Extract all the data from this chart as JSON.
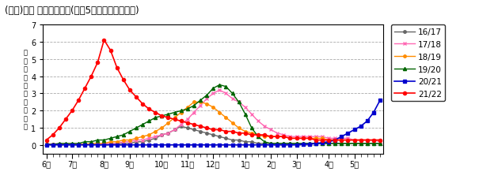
{
  "title": "(参考)全国 週別発生動向(過去5シーズンとの比較)",
  "ylabel": "定\n点\n当\nた\nり\n患\n者\n報\n告\n数",
  "ylim": [
    -0.5,
    7
  ],
  "yticks": [
    0,
    1,
    2,
    3,
    4,
    5,
    6,
    7
  ],
  "month_labels": [
    "6月",
    "7月",
    "8月",
    "9月",
    "10月",
    "11月",
    "12月",
    "1月",
    "2月",
    "3月",
    "4月",
    "5月"
  ],
  "n_weeks": 53,
  "month_tick_positions": [
    0,
    4,
    9,
    13,
    18,
    22,
    26,
    31,
    35,
    39,
    44,
    48
  ],
  "background_color": "#ffffff",
  "grid_color": "#aaaaaa",
  "series_order": [
    "16/17",
    "17/18",
    "18/19",
    "19/20",
    "20/21",
    "21/22"
  ],
  "series": {
    "16/17": {
      "color": "#666666",
      "marker": "o",
      "linewidth": 1.0,
      "markersize": 2.5,
      "data": [
        0.05,
        0.05,
        0.05,
        0.05,
        0.05,
        0.05,
        0.05,
        0.05,
        0.05,
        0.05,
        0.05,
        0.1,
        0.1,
        0.1,
        0.2,
        0.2,
        0.3,
        0.4,
        0.6,
        0.7,
        0.9,
        1.1,
        1.0,
        0.9,
        0.8,
        0.7,
        0.6,
        0.5,
        0.4,
        0.3,
        0.3,
        0.2,
        0.2,
        0.1,
        0.1,
        0.1,
        0.1,
        0.1,
        0.1,
        0.1,
        0.1,
        0.1,
        0.1,
        0.1,
        0.1,
        0.1,
        0.1,
        0.1,
        0.1,
        0.1,
        0.1,
        0.1,
        0.1
      ]
    },
    "17/18": {
      "color": "#ff69b4",
      "marker": "x",
      "linewidth": 1.0,
      "markersize": 3.5,
      "data": [
        0.05,
        0.05,
        0.05,
        0.05,
        0.05,
        0.05,
        0.05,
        0.05,
        0.05,
        0.1,
        0.1,
        0.1,
        0.2,
        0.2,
        0.3,
        0.3,
        0.4,
        0.5,
        0.6,
        0.7,
        0.9,
        1.2,
        1.5,
        1.9,
        2.3,
        2.7,
        3.0,
        3.2,
        3.0,
        2.7,
        2.5,
        2.2,
        1.8,
        1.4,
        1.1,
        0.9,
        0.7,
        0.6,
        0.5,
        0.5,
        0.5,
        0.5,
        0.5,
        0.5,
        0.4,
        0.4,
        0.4,
        0.4,
        0.3,
        0.3,
        0.3,
        0.3,
        0.2
      ]
    },
    "18/19": {
      "color": "#ff8c00",
      "marker": "o",
      "linewidth": 1.0,
      "markersize": 2.5,
      "data": [
        0.05,
        0.05,
        0.05,
        0.05,
        0.05,
        0.05,
        0.05,
        0.1,
        0.1,
        0.1,
        0.2,
        0.2,
        0.3,
        0.3,
        0.4,
        0.5,
        0.6,
        0.8,
        1.0,
        1.3,
        1.6,
        1.9,
        2.2,
        2.5,
        2.5,
        2.4,
        2.2,
        1.9,
        1.6,
        1.3,
        1.0,
        0.8,
        0.7,
        0.6,
        0.5,
        0.5,
        0.5,
        0.5,
        0.4,
        0.4,
        0.4,
        0.4,
        0.4,
        0.4,
        0.3,
        0.3,
        0.3,
        0.3,
        0.3,
        0.3,
        0.3,
        0.3,
        0.3
      ]
    },
    "19/20": {
      "color": "#006400",
      "marker": "^",
      "linewidth": 1.0,
      "markersize": 3.0,
      "data": [
        0.05,
        0.05,
        0.1,
        0.1,
        0.1,
        0.1,
        0.2,
        0.2,
        0.3,
        0.3,
        0.4,
        0.5,
        0.6,
        0.8,
        1.0,
        1.2,
        1.4,
        1.6,
        1.7,
        1.8,
        1.9,
        2.0,
        2.1,
        2.3,
        2.6,
        2.9,
        3.3,
        3.5,
        3.4,
        3.0,
        2.5,
        1.8,
        1.0,
        0.5,
        0.2,
        0.1,
        0.1,
        0.1,
        0.1,
        0.1,
        0.1,
        0.1,
        0.1,
        0.1,
        0.1,
        0.1,
        0.1,
        0.1,
        0.1,
        0.1,
        0.1,
        0.1,
        0.1
      ]
    },
    "20/21": {
      "color": "#0000cd",
      "marker": "s",
      "linewidth": 1.2,
      "markersize": 2.5,
      "data": [
        0.02,
        0.02,
        0.02,
        0.02,
        0.02,
        0.02,
        0.02,
        0.02,
        0.02,
        0.02,
        0.02,
        0.02,
        0.02,
        0.02,
        0.02,
        0.02,
        0.02,
        0.02,
        0.02,
        0.02,
        0.02,
        0.02,
        0.02,
        0.02,
        0.02,
        0.02,
        0.02,
        0.02,
        0.02,
        0.02,
        0.02,
        0.02,
        0.02,
        0.02,
        0.02,
        0.02,
        0.02,
        0.02,
        0.02,
        0.02,
        0.05,
        0.05,
        0.1,
        0.15,
        0.2,
        0.3,
        0.5,
        0.7,
        0.9,
        1.1,
        1.4,
        1.9,
        2.6
      ]
    },
    "21/22": {
      "color": "#ff0000",
      "marker": "o",
      "linewidth": 1.2,
      "markersize": 3.0,
      "data": [
        0.3,
        0.6,
        1.0,
        1.5,
        2.0,
        2.6,
        3.3,
        4.0,
        4.8,
        6.1,
        5.5,
        4.5,
        3.8,
        3.2,
        2.8,
        2.4,
        2.1,
        1.9,
        1.7,
        1.6,
        1.5,
        1.4,
        1.3,
        1.2,
        1.1,
        1.0,
        0.9,
        0.9,
        0.8,
        0.8,
        0.7,
        0.7,
        0.6,
        0.6,
        0.6,
        0.5,
        0.5,
        0.5,
        0.4,
        0.4,
        0.4,
        0.4,
        0.3,
        0.3,
        0.3,
        0.3,
        0.3,
        0.3,
        0.3,
        0.3,
        0.3,
        0.3,
        0.3
      ]
    }
  }
}
